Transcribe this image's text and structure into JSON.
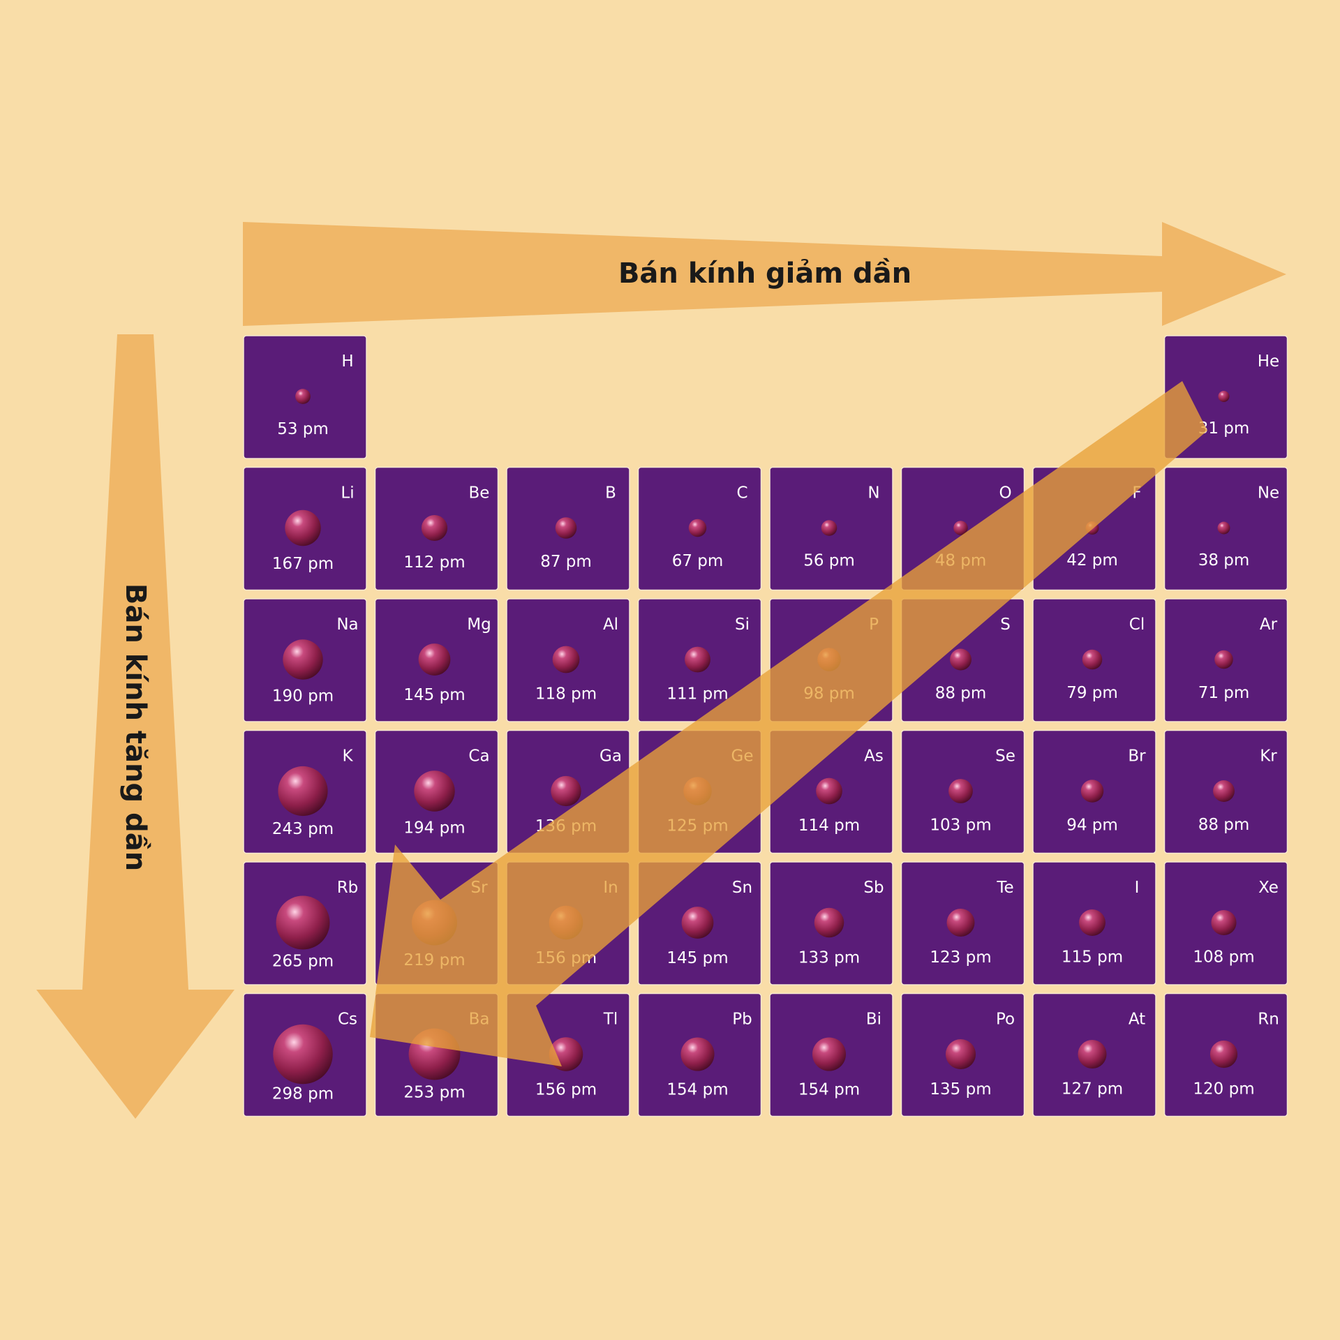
{
  "title_horizontal": "Bán kính giảm dần",
  "title_vertical": "Bán kính tăng dần",
  "unit": "pm",
  "colors": {
    "background": "#f9dda8",
    "tile": "#5a1c78",
    "tile_border": "#f6e7d0",
    "text": "#ffffff",
    "atom": "#8e1f4a",
    "arrow": "#f0b768",
    "diagonal_arrow": "#e8a23a"
  },
  "elements": [
    {
      "symbol": "H",
      "radius": "53",
      "row": 1,
      "col": 1
    },
    {
      "symbol": "He",
      "radius": "31",
      "row": 1,
      "col": 8
    },
    {
      "symbol": "Li",
      "radius": "167",
      "row": 2,
      "col": 1
    },
    {
      "symbol": "Be",
      "radius": "112",
      "row": 2,
      "col": 2
    },
    {
      "symbol": "B",
      "radius": "87",
      "row": 2,
      "col": 3
    },
    {
      "symbol": "C",
      "radius": "67",
      "row": 2,
      "col": 4
    },
    {
      "symbol": "N",
      "radius": "56",
      "row": 2,
      "col": 5
    },
    {
      "symbol": "O",
      "radius": "48",
      "row": 2,
      "col": 6
    },
    {
      "symbol": "F",
      "radius": "42",
      "row": 2,
      "col": 7
    },
    {
      "symbol": "Ne",
      "radius": "38",
      "row": 2,
      "col": 8
    },
    {
      "symbol": "Na",
      "radius": "190",
      "row": 3,
      "col": 1
    },
    {
      "symbol": "Mg",
      "radius": "145",
      "row": 3,
      "col": 2
    },
    {
      "symbol": "Al",
      "radius": "118",
      "row": 3,
      "col": 3
    },
    {
      "symbol": "Si",
      "radius": "111",
      "row": 3,
      "col": 4
    },
    {
      "symbol": "P",
      "radius": "98",
      "row": 3,
      "col": 5
    },
    {
      "symbol": "S",
      "radius": "88",
      "row": 3,
      "col": 6
    },
    {
      "symbol": "Cl",
      "radius": "79",
      "row": 3,
      "col": 7
    },
    {
      "symbol": "Ar",
      "radius": "71",
      "row": 3,
      "col": 8
    },
    {
      "symbol": "K",
      "radius": "243",
      "row": 4,
      "col": 1
    },
    {
      "symbol": "Ca",
      "radius": "194",
      "row": 4,
      "col": 2
    },
    {
      "symbol": "Ga",
      "radius": "136",
      "row": 4,
      "col": 3
    },
    {
      "symbol": "Ge",
      "radius": "125",
      "row": 4,
      "col": 4
    },
    {
      "symbol": "As",
      "radius": "114",
      "row": 4,
      "col": 5
    },
    {
      "symbol": "Se",
      "radius": "103",
      "row": 4,
      "col": 6
    },
    {
      "symbol": "Br",
      "radius": "94",
      "row": 4,
      "col": 7
    },
    {
      "symbol": "Kr",
      "radius": "88",
      "row": 4,
      "col": 8
    },
    {
      "symbol": "Rb",
      "radius": "265",
      "row": 5,
      "col": 1
    },
    {
      "symbol": "Sr",
      "radius": "219",
      "row": 5,
      "col": 2
    },
    {
      "symbol": "In",
      "radius": "156",
      "row": 5,
      "col": 3
    },
    {
      "symbol": "Sn",
      "radius": "145",
      "row": 5,
      "col": 4
    },
    {
      "symbol": "Sb",
      "radius": "133",
      "row": 5,
      "col": 5
    },
    {
      "symbol": "Te",
      "radius": "123",
      "row": 5,
      "col": 6
    },
    {
      "symbol": "I",
      "radius": "115",
      "row": 5,
      "col": 7
    },
    {
      "symbol": "Xe",
      "radius": "108",
      "row": 5,
      "col": 8
    },
    {
      "symbol": "Cs",
      "radius": "298",
      "row": 6,
      "col": 1
    },
    {
      "symbol": "Ba",
      "radius": "253",
      "row": 6,
      "col": 2
    },
    {
      "symbol": "Tl",
      "radius": "156",
      "row": 6,
      "col": 3
    },
    {
      "symbol": "Pb",
      "radius": "154",
      "row": 6,
      "col": 4
    },
    {
      "symbol": "Bi",
      "radius": "154",
      "row": 6,
      "col": 5
    },
    {
      "symbol": "Po",
      "radius": "135",
      "row": 6,
      "col": 6
    },
    {
      "symbol": "At",
      "radius": "127",
      "row": 6,
      "col": 7
    },
    {
      "symbol": "Rn",
      "radius": "120",
      "row": 6,
      "col": 8
    }
  ]
}
